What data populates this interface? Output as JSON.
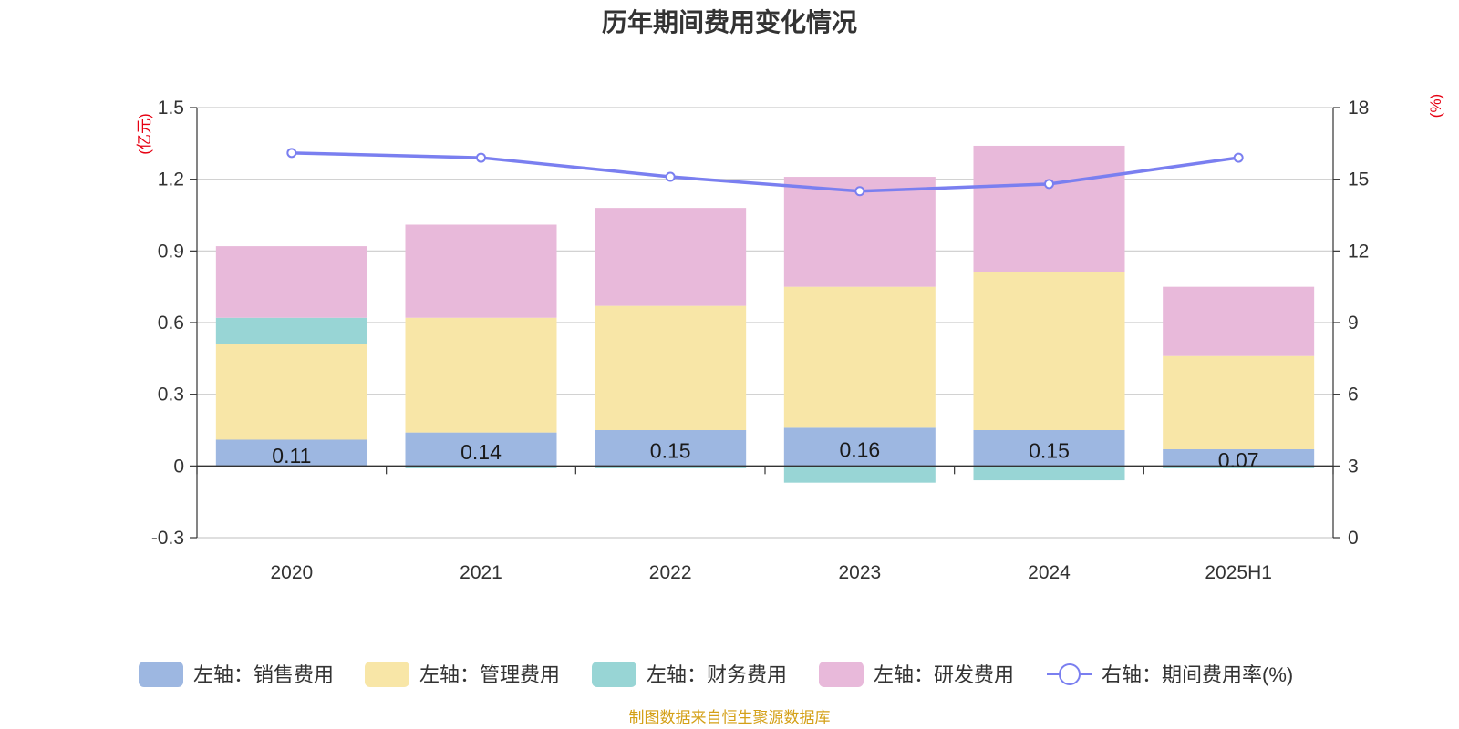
{
  "chart_data": {
    "type": "bar",
    "title": "历年期间费用变化情况",
    "categories": [
      "2020",
      "2021",
      "2022",
      "2023",
      "2024",
      "2025H1"
    ],
    "left_axis": {
      "unit": "(亿元)",
      "ylim": [
        -0.3,
        1.5
      ],
      "ticks": [
        "1.5",
        "1.2",
        "0.9",
        "0.6",
        "0.3",
        "0",
        "-0.3"
      ]
    },
    "right_axis": {
      "unit": "(%)",
      "ylim": [
        0,
        18
      ],
      "ticks": [
        "18",
        "15",
        "12",
        "9",
        "6",
        "3",
        "0"
      ]
    },
    "series": [
      {
        "name": "左轴：销售费用",
        "axis": "left",
        "type": "bar",
        "color": "#9db7e1",
        "values": [
          0.11,
          0.14,
          0.15,
          0.16,
          0.15,
          0.07
        ],
        "labels": [
          "0.11",
          "0.14",
          "0.15",
          "0.16",
          "0.15",
          "0.07"
        ]
      },
      {
        "name": "左轴：管理费用",
        "axis": "left",
        "type": "bar",
        "color": "#f8e6a7",
        "values": [
          0.4,
          0.48,
          0.52,
          0.59,
          0.66,
          0.39
        ]
      },
      {
        "name": "左轴：财务费用",
        "axis": "left",
        "type": "bar",
        "color": "#98d5d5",
        "values": [
          0.11,
          -0.01,
          -0.01,
          -0.07,
          -0.06,
          -0.01
        ]
      },
      {
        "name": "左轴：研发费用",
        "axis": "left",
        "type": "bar",
        "color": "#e8b9da",
        "values": [
          0.3,
          0.39,
          0.41,
          0.46,
          0.53,
          0.29
        ]
      },
      {
        "name": "右轴：期间费用率(%)",
        "axis": "right",
        "type": "line",
        "color": "#7a7ff0",
        "values": [
          16.1,
          15.9,
          15.1,
          14.5,
          14.8,
          15.9
        ]
      }
    ],
    "grid": true,
    "legend_position": "bottom"
  },
  "footer": {
    "source": "制图数据来自恒生聚源数据库"
  }
}
